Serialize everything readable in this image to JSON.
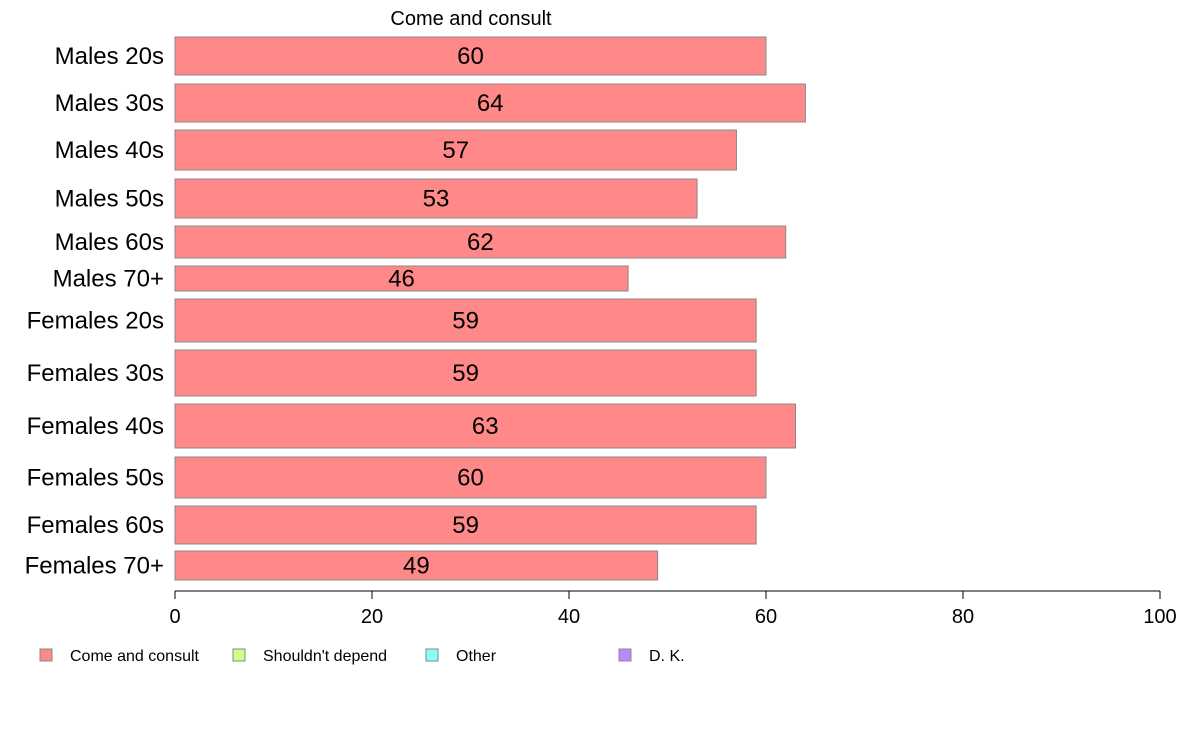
{
  "chart_data": {
    "type": "bar",
    "orientation": "horizontal",
    "title": "Come and consult",
    "categories": [
      "Males 20s",
      "Males 30s",
      "Males 40s",
      "Males 50s",
      "Males 60s",
      "Males 70+",
      "Females 20s",
      "Females 30s",
      "Females 40s",
      "Females 50s",
      "Females 60s",
      "Females 70+"
    ],
    "series": [
      {
        "name": "Come and consult",
        "values": [
          60,
          64,
          57,
          53,
          62,
          46,
          59,
          59,
          63,
          60,
          59,
          49
        ]
      }
    ],
    "xlim": [
      0,
      100
    ],
    "xticks": [
      0,
      20,
      40,
      60,
      80,
      100
    ],
    "grid": false,
    "legend_position": "bottom",
    "legend": [
      {
        "label": "Come and consult",
        "color": "#ff8888"
      },
      {
        "label": "Shouldn't depend",
        "color": "#ccff88"
      },
      {
        "label": "Other",
        "color": "#88ffff"
      },
      {
        "label": "D. K.",
        "color": "#bb88ff"
      }
    ],
    "bar_color": "#ff8888",
    "bar_edge_color": "#888888"
  }
}
